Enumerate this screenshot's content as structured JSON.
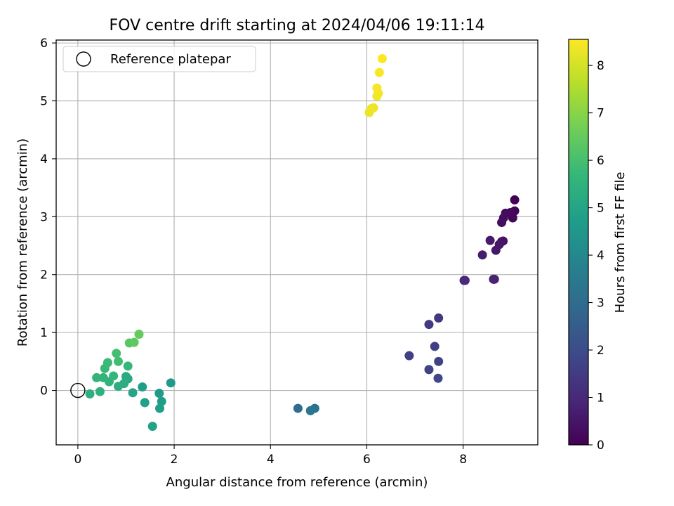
{
  "chart_data": {
    "type": "scatter",
    "title": "FOV centre drift starting at 2024/04/06 19:11:14",
    "xlabel": "Angular distance from reference (arcmin)",
    "ylabel": "Rotation from reference (arcmin)",
    "xlim": [
      -0.45,
      9.55
    ],
    "ylim": [
      -0.94,
      6.05
    ],
    "xticks": [
      0,
      2,
      4,
      6,
      8
    ],
    "yticks": [
      0,
      1,
      2,
      3,
      4,
      5,
      6
    ],
    "grid": true,
    "legend": {
      "position": "upper-left",
      "entries": [
        {
          "label": "Reference platepar",
          "marker": "open-circle"
        }
      ]
    },
    "reference_point": {
      "x": 0,
      "y": 0
    },
    "colorbar": {
      "label": "Hours from first FF file",
      "colormap": "viridis",
      "range": [
        0,
        8.55
      ],
      "ticks": [
        0,
        1,
        2,
        3,
        4,
        5,
        6,
        7,
        8
      ]
    },
    "colormap_stops": [
      "#440154",
      "#482878",
      "#3e4989",
      "#31688e",
      "#26828e",
      "#1f9e89",
      "#35b779",
      "#6ece58",
      "#b5de2b",
      "#fde725"
    ],
    "points": [
      {
        "x": 9.07,
        "y": 3.29,
        "h": 0.0
      },
      {
        "x": 9.07,
        "y": 3.1,
        "h": 0.1
      },
      {
        "x": 9.03,
        "y": 2.98,
        "h": 0.15
      },
      {
        "x": 8.98,
        "y": 3.07,
        "h": 0.2
      },
      {
        "x": 8.88,
        "y": 3.06,
        "h": 0.25
      },
      {
        "x": 8.84,
        "y": 2.98,
        "h": 0.3
      },
      {
        "x": 8.8,
        "y": 2.9,
        "h": 0.35
      },
      {
        "x": 8.83,
        "y": 2.58,
        "h": 0.4
      },
      {
        "x": 8.8,
        "y": 2.57,
        "h": 0.45
      },
      {
        "x": 8.75,
        "y": 2.52,
        "h": 0.5
      },
      {
        "x": 8.68,
        "y": 2.42,
        "h": 0.55
      },
      {
        "x": 8.56,
        "y": 2.59,
        "h": 0.6
      },
      {
        "x": 8.4,
        "y": 2.34,
        "h": 0.65
      },
      {
        "x": 8.63,
        "y": 1.92,
        "h": 0.8
      },
      {
        "x": 8.65,
        "y": 1.92,
        "h": 0.85
      },
      {
        "x": 8.02,
        "y": 1.9,
        "h": 0.95
      },
      {
        "x": 8.04,
        "y": 1.9,
        "h": 1.0
      },
      {
        "x": 7.49,
        "y": 1.25,
        "h": 1.4
      },
      {
        "x": 7.29,
        "y": 1.14,
        "h": 1.5
      },
      {
        "x": 7.41,
        "y": 0.76,
        "h": 1.6
      },
      {
        "x": 6.88,
        "y": 0.6,
        "h": 1.65
      },
      {
        "x": 7.49,
        "y": 0.5,
        "h": 1.7
      },
      {
        "x": 7.29,
        "y": 0.36,
        "h": 1.75
      },
      {
        "x": 7.48,
        "y": 0.21,
        "h": 1.85
      },
      {
        "x": 4.57,
        "y": -0.31,
        "h": 3.0
      },
      {
        "x": 4.92,
        "y": -0.31,
        "h": 3.2
      },
      {
        "x": 4.83,
        "y": -0.35,
        "h": 3.35
      },
      {
        "x": 1.93,
        "y": 0.13,
        "h": 4.6
      },
      {
        "x": 1.69,
        "y": -0.05,
        "h": 4.65
      },
      {
        "x": 1.74,
        "y": -0.19,
        "h": 4.7
      },
      {
        "x": 1.7,
        "y": -0.31,
        "h": 4.75
      },
      {
        "x": 1.34,
        "y": 0.06,
        "h": 4.8
      },
      {
        "x": 1.39,
        "y": -0.21,
        "h": 4.85
      },
      {
        "x": 1.55,
        "y": -0.62,
        "h": 4.9
      },
      {
        "x": 1.14,
        "y": -0.04,
        "h": 5.0
      },
      {
        "x": 1.04,
        "y": 0.2,
        "h": 5.1
      },
      {
        "x": 1.0,
        "y": 0.24,
        "h": 5.2
      },
      {
        "x": 0.96,
        "y": 0.12,
        "h": 5.3
      },
      {
        "x": 0.84,
        "y": 0.07,
        "h": 5.35
      },
      {
        "x": 0.25,
        "y": -0.06,
        "h": 5.4
      },
      {
        "x": 0.46,
        "y": -0.02,
        "h": 5.45
      },
      {
        "x": 0.65,
        "y": 0.15,
        "h": 5.5
      },
      {
        "x": 0.53,
        "y": 0.22,
        "h": 5.55
      },
      {
        "x": 0.39,
        "y": 0.22,
        "h": 5.6
      },
      {
        "x": 0.74,
        "y": 0.25,
        "h": 5.65
      },
      {
        "x": 1.04,
        "y": 0.42,
        "h": 5.7
      },
      {
        "x": 0.56,
        "y": 0.38,
        "h": 5.75
      },
      {
        "x": 0.62,
        "y": 0.48,
        "h": 5.8
      },
      {
        "x": 0.84,
        "y": 0.5,
        "h": 5.9
      },
      {
        "x": 0.8,
        "y": 0.64,
        "h": 6.0
      },
      {
        "x": 1.07,
        "y": 0.82,
        "h": 6.3
      },
      {
        "x": 1.17,
        "y": 0.83,
        "h": 6.4
      },
      {
        "x": 1.27,
        "y": 0.97,
        "h": 6.5
      },
      {
        "x": 6.05,
        "y": 4.8,
        "h": 8.3
      },
      {
        "x": 6.1,
        "y": 4.87,
        "h": 8.33
      },
      {
        "x": 6.14,
        "y": 4.88,
        "h": 8.36
      },
      {
        "x": 6.24,
        "y": 5.13,
        "h": 8.4
      },
      {
        "x": 6.21,
        "y": 5.08,
        "h": 8.42
      },
      {
        "x": 6.21,
        "y": 5.22,
        "h": 8.45
      },
      {
        "x": 6.26,
        "y": 5.49,
        "h": 8.5
      },
      {
        "x": 6.32,
        "y": 5.73,
        "h": 8.55
      }
    ]
  }
}
